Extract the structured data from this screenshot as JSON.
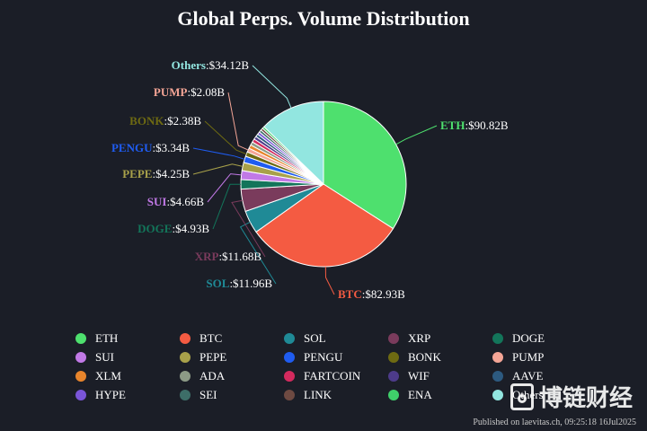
{
  "chart_data": {
    "type": "pie",
    "title": "Global Perps. Volume Distribution",
    "unit": "$B",
    "slices": [
      {
        "name": "ETH",
        "value": 90.82,
        "label": "$90.82B",
        "color": "#4ee06e"
      },
      {
        "name": "BTC",
        "value": 82.93,
        "label": "$82.93B",
        "color": "#f45b42"
      },
      {
        "name": "SOL",
        "value": 11.96,
        "label": "$11.96B",
        "color": "#1f8a96"
      },
      {
        "name": "XRP",
        "value": 11.68,
        "label": "$11.68B",
        "color": "#7a3b5c"
      },
      {
        "name": "DOGE",
        "value": 4.93,
        "label": "$4.93B",
        "color": "#13755a"
      },
      {
        "name": "SUI",
        "value": 4.66,
        "label": "$4.66B",
        "color": "#c179e6"
      },
      {
        "name": "PEPE",
        "value": 4.25,
        "label": "$4.25B",
        "color": "#a8a14a"
      },
      {
        "name": "PENGU",
        "value": 3.34,
        "label": "$3.34B",
        "color": "#1f5cf0"
      },
      {
        "name": "BONK",
        "value": 2.38,
        "label": "$2.38B",
        "color": "#6e6a12"
      },
      {
        "name": "PUMP",
        "value": 2.08,
        "label": "$2.08B",
        "color": "#f4a596"
      },
      {
        "name": "XLM",
        "value": 1.9,
        "color": "#e8852c"
      },
      {
        "name": "ADA",
        "value": 1.8,
        "color": "#8c9a86"
      },
      {
        "name": "FARTCOIN",
        "value": 1.7,
        "color": "#d42a5e"
      },
      {
        "name": "WIF",
        "value": 1.6,
        "color": "#4d3b8a"
      },
      {
        "name": "AAVE",
        "value": 1.5,
        "color": "#2d5a80"
      },
      {
        "name": "HYPE",
        "value": 1.4,
        "color": "#7a55d8"
      },
      {
        "name": "SEI",
        "value": 1.3,
        "color": "#3d6e68"
      },
      {
        "name": "LINK",
        "value": 1.2,
        "color": "#6e4a42"
      },
      {
        "name": "ENA",
        "value": 1.1,
        "color": "#3fcf6a"
      },
      {
        "name": "Others",
        "value": 34.12,
        "label": "$34.12B",
        "color": "#92e6e0"
      }
    ],
    "legend_position": "bottom"
  },
  "footer": "Published on laevitas.ch, 09:25:18 16Jul2025",
  "watermark_text": "博链财经"
}
